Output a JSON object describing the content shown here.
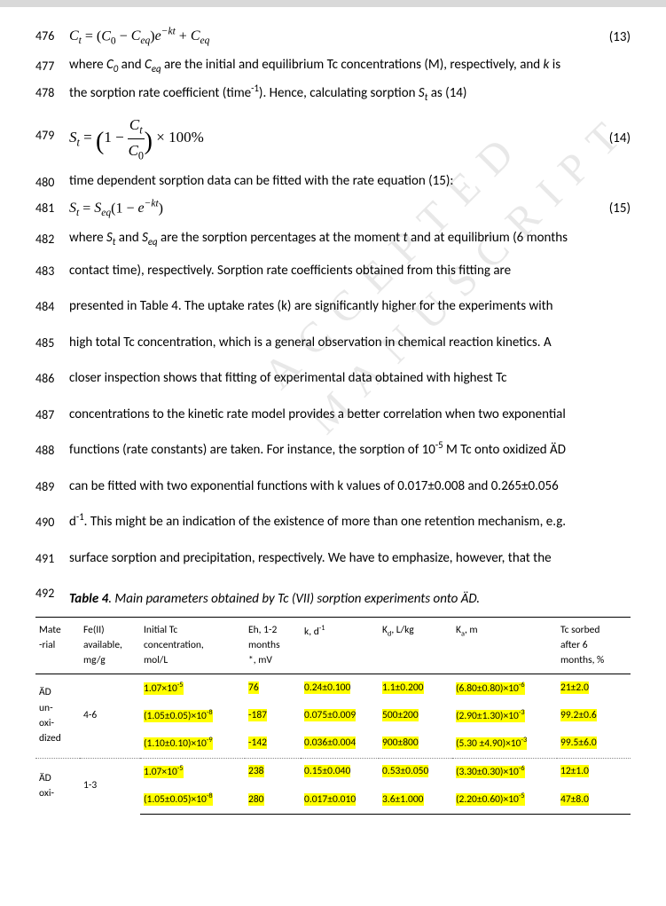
{
  "watermark": "ACCEPTED MANUSCRIPT",
  "lines": {
    "476": {
      "eq": "C_t = (C_0 − C_eq) e^{−kt} + C_eq",
      "eqnum": "(13)"
    },
    "477": {
      "text_a": "where ",
      "c0": "C",
      "c0sub": "0",
      "mid1": " and ",
      "ceq": "C",
      "ceqsub": "eq",
      "text_b": " are the initial and equilibrium Tc concentrations (M), respectively, and ",
      "k": "k",
      "text_c": " is"
    },
    "478": {
      "text_a": "the sorption rate coefficient (time",
      "sup": "-1",
      "text_b": "). Hence, calculating sorption ",
      "st": "S",
      "stsub": "t",
      "text_c": " as (14)"
    },
    "479": {
      "eq": "S_t = (1 − C_t / C_0) × 100%",
      "eqnum": "(14)"
    },
    "480": {
      "text": "time dependent sorption data can be fitted with the rate equation (15):"
    },
    "481": {
      "eq": "S_t = S_eq (1 − e^{−kt})",
      "eqnum": "(15)"
    },
    "482": {
      "a": "where ",
      "st": "S",
      "stsub": "t",
      "b": " and ",
      "seq": "S",
      "seqsub": "eq",
      "c": " are the sorption percentages at the moment ",
      "tvar": "t",
      "d": " and at equilibrium (6 months"
    },
    "483": "contact time), respectively. Sorption rate coefficients obtained from this fitting are",
    "484": "presented in Table 4. The uptake rates (k) are significantly higher for the experiments with",
    "485": "high total Tc concentration, which is a general observation in chemical reaction kinetics. A",
    "486": "closer inspection shows that fitting of experimental data obtained with highest Tc",
    "487": "concentrations to the kinetic rate model provides a better correlation when two exponential",
    "488_a": "functions (rate constants) are taken. For instance, the sorption of 10",
    "488_sup": "-5",
    "488_b": " M Tc onto oxidized ÄD",
    "489": "can be fitted with two exponential functions with k values of 0.017±0.008 and 0.265±0.056",
    "490_a": "d",
    "490_sup": "-1",
    "490_b": ". This might be an indication of the existence of more than one retention mechanism, e.g.",
    "491": "surface sorption and precipitation, respectively. We have to emphasize, however, that the",
    "492_b": "Table 4",
    "492_t": ". Main parameters obtained by Tc (VII) sorption experiments onto ÄD."
  },
  "table": {
    "headers": {
      "material": "Mate\n-rial",
      "fe": "Fe(II)\navailable,\nmg/g",
      "initTc": "Initial Tc\nconcentration,\nmol/L",
      "eh": "Eh, 1-2\nmonths\n*, mV",
      "k_a": "k, d",
      "k_sup": "-1",
      "kd_a": "K",
      "kd_sub": "d",
      "kd_b": ", L/kg",
      "ka_a": "K",
      "ka_sub": "a",
      "ka_b": ", m",
      "sorbed": "Tc sorbed\nafter 6\nmonths, %"
    },
    "rows": [
      {
        "material": "ÄD\nun-\noxi-\ndized",
        "fe": "4-6",
        "sub": [
          {
            "tc": "1.07×10",
            "tcsup": "-5",
            "eh": "76",
            "k": "0.24±0.100",
            "kd": "1.1±0.200",
            "ka": "(6.80±0.80)×10",
            "kasup": "-6",
            "sorbed": "21±2.0"
          },
          {
            "tc": "(1.05±0.05)×10",
            "tcsup": "-8",
            "eh": "-187",
            "k": "0.075±0.009",
            "kd": "500±200",
            "ka": "(2.90±1.30)×10",
            "kasup": "-3",
            "sorbed": "99.2±0.6"
          },
          {
            "tc": "(1.10±0.10)×10",
            "tcsup": "-9",
            "eh": "-142",
            "k": "0.036±0.004",
            "kd": "900±800",
            "ka": "(5.30 ±4.90)×10",
            "kasup": "-3",
            "sorbed": "99.5±6.0"
          }
        ]
      },
      {
        "material": "ÄD\noxi-",
        "fe": "1-3",
        "sub": [
          {
            "tc": "1.07×10",
            "tcsup": "-5",
            "eh": "238",
            "k": "0.15±0.040",
            "kd": "0.53±0.050",
            "ka": "(3.30±0.30)×10",
            "kasup": "-6",
            "sorbed": "12±1.0"
          },
          {
            "tc": "(1.05±0.05)×10",
            "tcsup": "-8",
            "eh": "280",
            "k": "0.017±0.010",
            "kd": "3.6±1.000",
            "ka": "(2.20±0.60)×10",
            "kasup": "-5",
            "sorbed": "47±8.0"
          }
        ]
      }
    ]
  },
  "style": {
    "highlight_bg": "#ffff00",
    "font_family": "Calibri, Arial, sans-serif",
    "body_font_size": 15,
    "table_font_size": 11.5
  }
}
